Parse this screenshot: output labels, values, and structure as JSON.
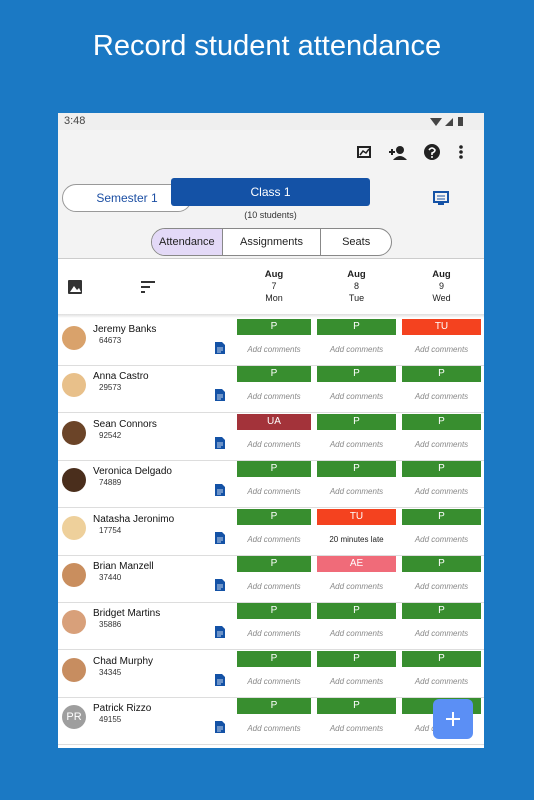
{
  "header": {
    "title": "Record student attendance"
  },
  "status_bar": {
    "time": "3:48"
  },
  "class_bar": {
    "semester": "Semester 1",
    "class": "Class 1",
    "count": "(10 students)"
  },
  "segments": [
    "Attendance",
    "Assignments",
    "Seats"
  ],
  "selected_segment": 0,
  "dates": [
    {
      "month": "Aug",
      "day": 7,
      "weekday": "Mon"
    },
    {
      "month": "Aug",
      "day": 8,
      "weekday": "Tue"
    },
    {
      "month": "Aug",
      "day": 9,
      "weekday": "Wed"
    }
  ],
  "status_colors": {
    "P": "#388e2f",
    "TU": "#f4421f",
    "UA": "#a3333a",
    "AE": "#f06b79"
  },
  "students": [
    {
      "name": "Jeremy Banks",
      "id": 64673,
      "marks": [
        "P",
        "P",
        "TU"
      ],
      "comments": [
        "Add comments",
        "Add comments",
        "Add comments"
      ]
    },
    {
      "name": "Anna Castro",
      "id": 29573,
      "marks": [
        "P",
        "P",
        "P"
      ],
      "comments": [
        "Add comments",
        "Add comments",
        "Add comments"
      ]
    },
    {
      "name": "Sean Connors",
      "id": 92542,
      "marks": [
        "UA",
        "P",
        "P"
      ],
      "comments": [
        "Add comments",
        "Add comments",
        "Add comments"
      ]
    },
    {
      "name": "Veronica Delgado",
      "id": 74889,
      "marks": [
        "P",
        "P",
        "P"
      ],
      "comments": [
        "Add comments",
        "Add comments",
        "Add comments"
      ]
    },
    {
      "name": "Natasha Jeronimo",
      "id": 17754,
      "marks": [
        "P",
        "TU",
        "P"
      ],
      "comments": [
        "Add comments",
        "20 minutes late",
        "Add comments"
      ]
    },
    {
      "name": "Brian Manzell",
      "id": 37440,
      "marks": [
        "P",
        "AE",
        "P"
      ],
      "comments": [
        "Add comments",
        "Add comments",
        "Add comments"
      ]
    },
    {
      "name": "Bridget Martins",
      "id": 35886,
      "marks": [
        "P",
        "P",
        "P"
      ],
      "comments": [
        "Add comments",
        "Add comments",
        "Add comments"
      ]
    },
    {
      "name": "Chad Murphy",
      "id": 34345,
      "marks": [
        "P",
        "P",
        "P"
      ],
      "comments": [
        "Add comments",
        "Add comments",
        "Add comments"
      ]
    },
    {
      "name": "Patrick Rizzo",
      "id": 49155,
      "initials": "PR",
      "marks": [
        "P",
        "P",
        "P"
      ],
      "comments": [
        "Add comments",
        "Add comments",
        "Add comments"
      ]
    }
  ]
}
